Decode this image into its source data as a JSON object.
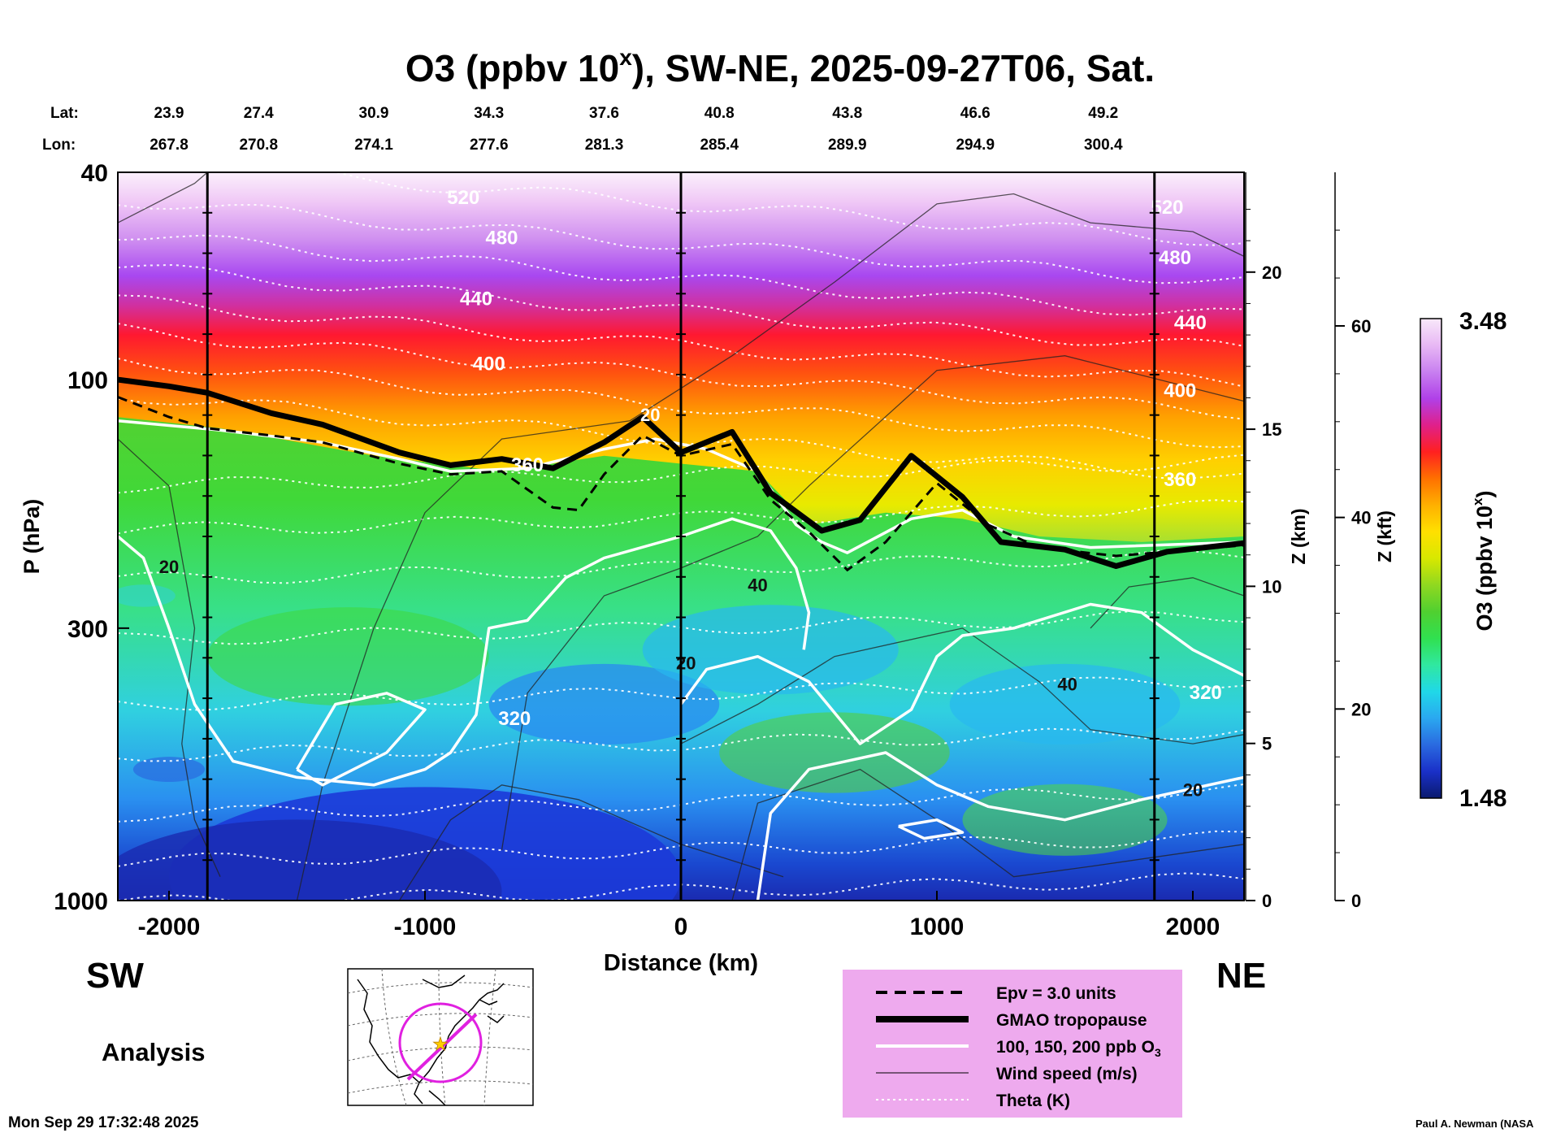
{
  "chart_data": {
    "type": "heatmap",
    "title_main": "O3 (ppbv 10",
    "title_sup": "x",
    "title_rest": "), SW-NE, 2025-09-27T06, Sat.",
    "xlabel": "Distance (km)",
    "ylabel_left": "P (hPa)",
    "ylabel_z_km": "Z (km)",
    "ylabel_z_kft": "Z (kft)",
    "colorbar_label": "O3 (ppbv 10",
    "colorbar_label_sup": "x",
    "colorbar_label_end": ")",
    "xlim": [
      -2200,
      2200
    ],
    "ylim_hpa": [
      1000,
      40
    ],
    "x_ticks": [
      -2000,
      -1000,
      0,
      1000,
      2000
    ],
    "x_tick_labels": [
      "-2000",
      "-1000",
      "0",
      "1000",
      "2000"
    ],
    "p_ticks": [
      40,
      100,
      300,
      1000
    ],
    "p_tick_labels": [
      "40",
      "100",
      "300",
      "1000"
    ],
    "z_km_ticks": [
      0,
      5,
      10,
      15,
      20
    ],
    "z_km_labels": [
      "0",
      "5",
      "10",
      "15",
      "20"
    ],
    "z_kft_ticks": [
      0,
      20,
      40,
      60
    ],
    "z_kft_labels": [
      "0",
      "20",
      "40",
      "60"
    ],
    "vertical_lines_km": [
      -1850,
      0,
      1850
    ],
    "lat_label": "Lat:",
    "lon_label": "Lon:",
    "lat_values": [
      "23.9",
      "27.4",
      "30.9",
      "34.3",
      "37.6",
      "40.8",
      "43.8",
      "46.6",
      "49.2"
    ],
    "lon_values": [
      "267.8",
      "270.8",
      "274.1",
      "277.6",
      "281.3",
      "285.4",
      "289.9",
      "294.9",
      "300.4"
    ],
    "colorbar_max": "3.48",
    "colorbar_min": "1.48",
    "colorbar_range": [
      1.48,
      3.48
    ],
    "colorbar_colors": [
      "#0a1a6e",
      "#1a30c8",
      "#2a6ae0",
      "#2aa8f0",
      "#20d8e8",
      "#30e8a0",
      "#30e050",
      "#50d030",
      "#90d820",
      "#d8e800",
      "#ffe000",
      "#ffb000",
      "#ff7000",
      "#ff2020",
      "#e0208a",
      "#b040e8",
      "#c880f0",
      "#e8b8f4",
      "#f8e8fa"
    ],
    "tropopause_hpa": [
      [
        -2200,
        100
      ],
      [
        -2000,
        103
      ],
      [
        -1850,
        106
      ],
      [
        -1600,
        116
      ],
      [
        -1400,
        122
      ],
      [
        -1100,
        138
      ],
      [
        -900,
        146
      ],
      [
        -700,
        142
      ],
      [
        -500,
        148
      ],
      [
        -300,
        132
      ],
      [
        -150,
        118
      ],
      [
        0,
        138
      ],
      [
        200,
        126
      ],
      [
        350,
        165
      ],
      [
        550,
        195
      ],
      [
        700,
        186
      ],
      [
        900,
        140
      ],
      [
        1100,
        168
      ],
      [
        1250,
        205
      ],
      [
        1500,
        212
      ],
      [
        1700,
        228
      ],
      [
        1900,
        214
      ],
      [
        2200,
        206
      ]
    ],
    "epv_hpa": [
      [
        -2200,
        108
      ],
      [
        -2000,
        118
      ],
      [
        -1850,
        124
      ],
      [
        -1600,
        128
      ],
      [
        -1400,
        132
      ],
      [
        -1100,
        145
      ],
      [
        -900,
        152
      ],
      [
        -700,
        150
      ],
      [
        -500,
        176
      ],
      [
        -400,
        178
      ],
      [
        -300,
        152
      ],
      [
        -150,
        128
      ],
      [
        0,
        140
      ],
      [
        200,
        133
      ],
      [
        350,
        170
      ],
      [
        500,
        196
      ],
      [
        650,
        232
      ],
      [
        800,
        205
      ],
      [
        1000,
        158
      ],
      [
        1200,
        190
      ],
      [
        1400,
        210
      ],
      [
        1700,
        218
      ],
      [
        2000,
        212
      ],
      [
        2200,
        208
      ]
    ],
    "theta_labels": [
      {
        "text": "520",
        "x": -850,
        "p": 46
      },
      {
        "text": "480",
        "x": -700,
        "p": 55
      },
      {
        "text": "440",
        "x": -800,
        "p": 72
      },
      {
        "text": "400",
        "x": -750,
        "p": 96
      },
      {
        "text": "360",
        "x": -600,
        "p": 150
      },
      {
        "text": "320",
        "x": -650,
        "p": 460
      },
      {
        "text": "520",
        "x": 1900,
        "p": 48
      },
      {
        "text": "480",
        "x": 1930,
        "p": 60
      },
      {
        "text": "440",
        "x": 1990,
        "p": 80
      },
      {
        "text": "400",
        "x": 1950,
        "p": 108
      },
      {
        "text": "360",
        "x": 1950,
        "p": 160
      },
      {
        "text": "320",
        "x": 2050,
        "p": 410
      }
    ],
    "wind_labels": [
      {
        "text": "20",
        "x": -2000,
        "p": 235
      },
      {
        "text": "40",
        "x": 300,
        "p": 255
      },
      {
        "text": "20",
        "x": 20,
        "p": 360
      },
      {
        "text": "40",
        "x": 1510,
        "p": 395
      },
      {
        "text": "20",
        "x": 2000,
        "p": 630
      }
    ],
    "o3_labels": [
      {
        "text": "20",
        "x": -120,
        "p": 120
      }
    ],
    "legend_items": [
      {
        "style": "dashed",
        "label": "Epv = 3.0 units"
      },
      {
        "style": "thick",
        "label": "GMAO tropopause"
      },
      {
        "style": "white",
        "label_main": "100, 150, 200 ppb O",
        "label_sub": "3"
      },
      {
        "style": "thin",
        "label": "Wind speed (m/s)"
      },
      {
        "style": "dotted",
        "label": "Theta (K)"
      }
    ],
    "legend_colors": {
      "background": "#eeaaee",
      "white_line": "#ffffff"
    },
    "dir_left": "SW",
    "dir_right": "NE",
    "analysis_label": "Analysis",
    "timestamp": "Mon Sep 29 17:32:48 2025",
    "credit": "Paul A. Newman (NASA"
  }
}
